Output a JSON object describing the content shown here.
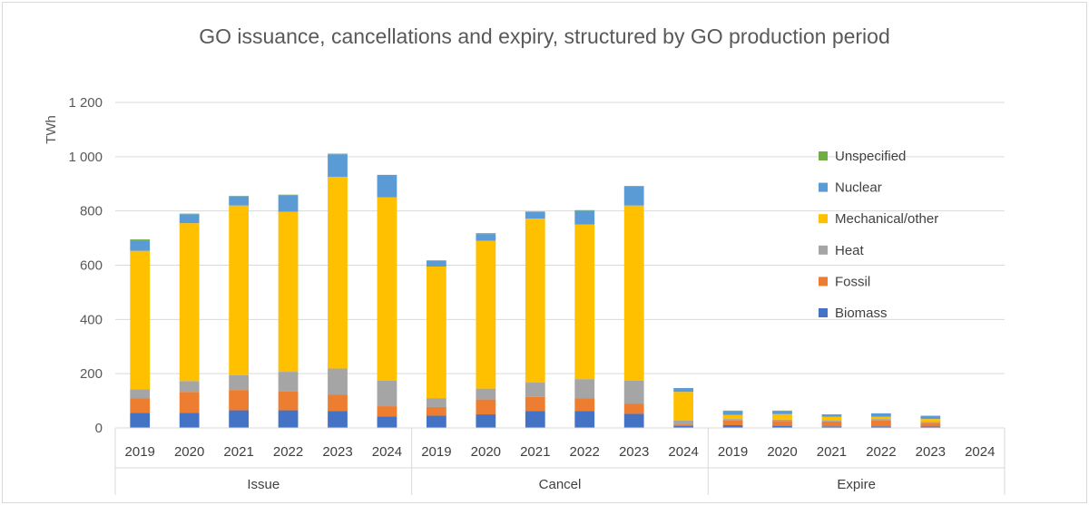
{
  "chart_data": {
    "type": "bar",
    "stacked": true,
    "title": "GO issuance, cancellations and expiry, structured by GO production period",
    "ylabel": "TWh",
    "xlabel": "",
    "ylim": [
      0,
      1200
    ],
    "yticks": [
      0,
      200,
      400,
      600,
      800,
      1000,
      1200
    ],
    "ytick_labels": [
      "0",
      "200",
      "400",
      "600",
      "800",
      "1 000",
      "1 200"
    ],
    "grid": true,
    "legend_position": "right",
    "groups": [
      {
        "name": "Issue",
        "categories": [
          "2019",
          "2020",
          "2021",
          "2022",
          "2023",
          "2024"
        ]
      },
      {
        "name": "Cancel",
        "categories": [
          "2019",
          "2020",
          "2021",
          "2022",
          "2023",
          "2024"
        ]
      },
      {
        "name": "Expire",
        "categories": [
          "2019",
          "2020",
          "2021",
          "2022",
          "2023",
          "2024"
        ]
      }
    ],
    "series": [
      {
        "name": "Biomass",
        "color": "#4472c4",
        "values": [
          55,
          55,
          65,
          65,
          62,
          42,
          45,
          50,
          62,
          62,
          52,
          8,
          10,
          8,
          6,
          6,
          5,
          0
        ]
      },
      {
        "name": "Fossil",
        "color": "#ed7d31",
        "values": [
          55,
          78,
          75,
          70,
          60,
          38,
          32,
          55,
          52,
          48,
          38,
          5,
          18,
          18,
          18,
          22,
          14,
          0
        ]
      },
      {
        "name": "Heat",
        "color": "#a5a5a5",
        "values": [
          33,
          40,
          55,
          72,
          97,
          95,
          33,
          40,
          53,
          70,
          85,
          15,
          5,
          5,
          5,
          5,
          4,
          0
        ]
      },
      {
        "name": "Mechanical/other",
        "color": "#ffc000",
        "values": [
          510,
          582,
          625,
          590,
          707,
          675,
          485,
          545,
          605,
          570,
          645,
          105,
          15,
          20,
          12,
          8,
          10,
          0
        ]
      },
      {
        "name": "Nuclear",
        "color": "#5b9bd5",
        "values": [
          37,
          33,
          34,
          61,
          83,
          83,
          21,
          25,
          25,
          51,
          71,
          14,
          15,
          12,
          9,
          13,
          12,
          0
        ]
      },
      {
        "name": "Unspecified",
        "color": "#70ad47",
        "values": [
          5,
          2,
          1,
          2,
          2,
          0,
          2,
          3,
          1,
          2,
          1,
          0,
          1,
          1,
          0,
          0,
          0,
          0
        ]
      }
    ],
    "legend_order": [
      "Unspecified",
      "Nuclear",
      "Mechanical/other",
      "Heat",
      "Fossil",
      "Biomass"
    ]
  }
}
